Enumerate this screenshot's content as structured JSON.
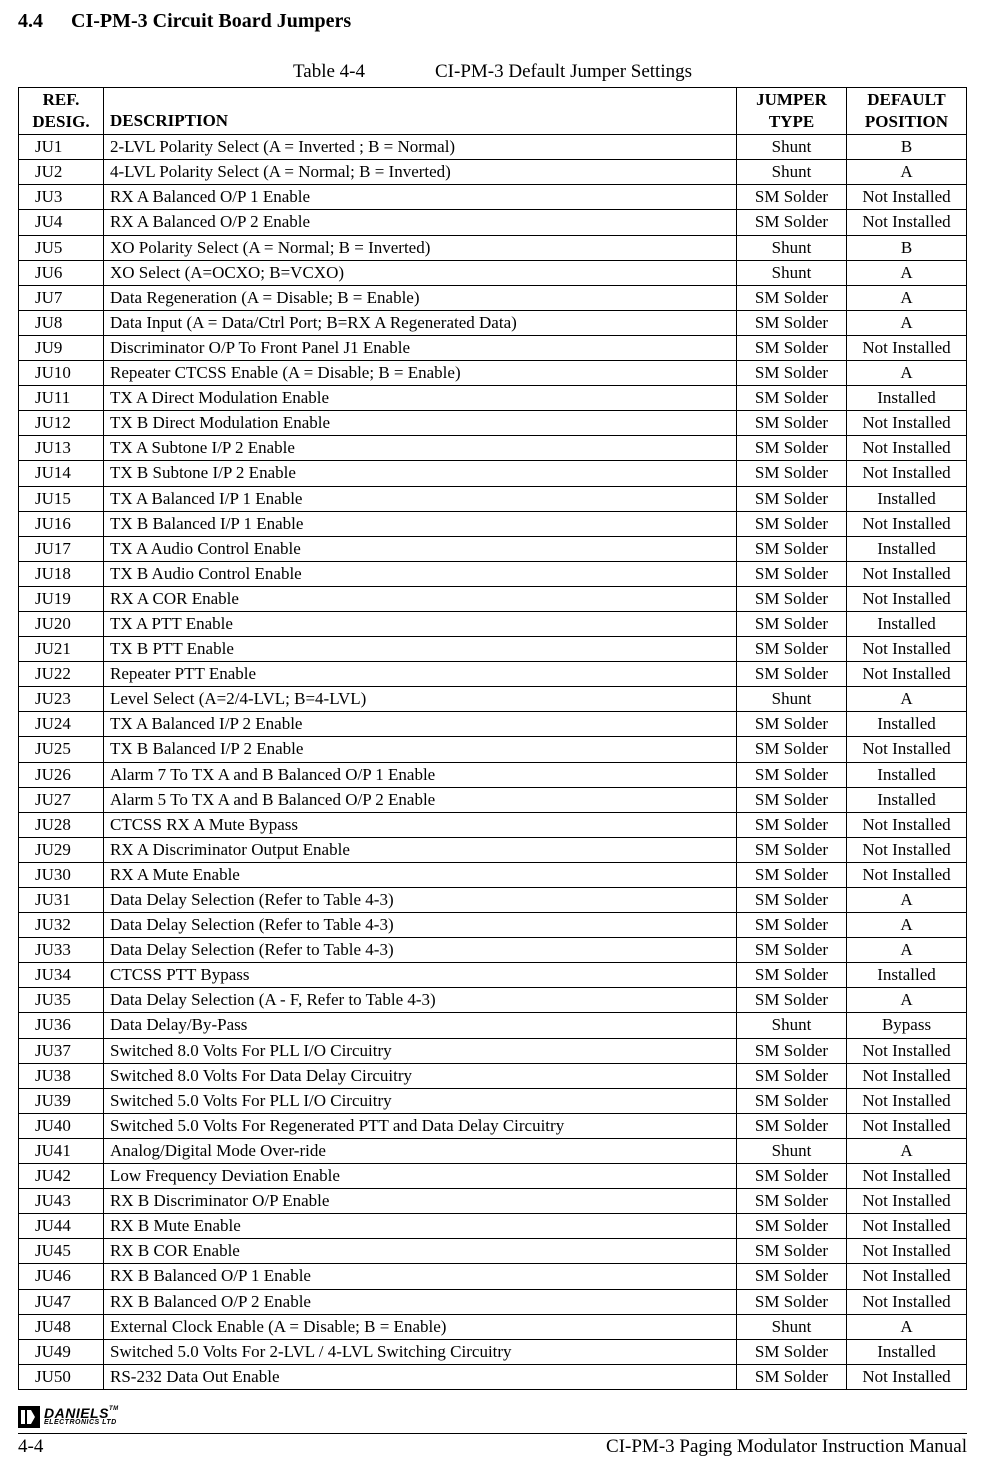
{
  "section": {
    "number": "4.4",
    "title": "CI-PM-3 Circuit Board Jumpers"
  },
  "table": {
    "number": "Table 4-4",
    "title": "CI-PM-3 Default Jumper Settings",
    "headers": {
      "ref1": "REF.",
      "ref2": "DESIG.",
      "desc": "DESCRIPTION",
      "type1": "JUMPER",
      "type2": "TYPE",
      "pos1": "DEFAULT",
      "pos2": "POSITION"
    },
    "rows": [
      {
        "ref": "JU1",
        "desc": "2-LVL Polarity Select (A = Inverted ; B = Normal)",
        "type": "Shunt",
        "pos": "B"
      },
      {
        "ref": "JU2",
        "desc": "4-LVL Polarity Select (A = Normal; B = Inverted)",
        "type": "Shunt",
        "pos": "A"
      },
      {
        "ref": "JU3",
        "desc": "RX A Balanced O/P 1 Enable",
        "type": "SM Solder",
        "pos": "Not Installed"
      },
      {
        "ref": "JU4",
        "desc": "RX A Balanced O/P 2 Enable",
        "type": "SM Solder",
        "pos": "Not Installed"
      },
      {
        "ref": "JU5",
        "desc": "XO Polarity Select (A = Normal; B = Inverted)",
        "type": "Shunt",
        "pos": "B"
      },
      {
        "ref": "JU6",
        "desc": "XO Select (A=OCXO; B=VCXO)",
        "type": "Shunt",
        "pos": "A"
      },
      {
        "ref": "JU7",
        "desc": "Data Regeneration (A = Disable; B = Enable)",
        "type": "SM Solder",
        "pos": "A"
      },
      {
        "ref": "JU8",
        "desc": "Data Input (A = Data/Ctrl Port; B=RX A Regenerated Data)",
        "type": "SM Solder",
        "pos": "A"
      },
      {
        "ref": "JU9",
        "desc": "Discriminator O/P To Front Panel J1 Enable",
        "type": "SM Solder",
        "pos": "Not Installed"
      },
      {
        "ref": "JU10",
        "desc": "Repeater CTCSS Enable (A = Disable; B = Enable)",
        "type": "SM Solder",
        "pos": "A"
      },
      {
        "ref": "JU11",
        "desc": "TX A Direct Modulation Enable",
        "type": "SM Solder",
        "pos": "Installed"
      },
      {
        "ref": "JU12",
        "desc": "TX B Direct Modulation Enable",
        "type": "SM Solder",
        "pos": "Not Installed"
      },
      {
        "ref": "JU13",
        "desc": "TX A Subtone I/P 2 Enable",
        "type": "SM Solder",
        "pos": "Not Installed"
      },
      {
        "ref": "JU14",
        "desc": "TX B Subtone I/P 2 Enable",
        "type": "SM Solder",
        "pos": "Not Installed"
      },
      {
        "ref": "JU15",
        "desc": "TX A Balanced I/P 1 Enable",
        "type": "SM Solder",
        "pos": "Installed"
      },
      {
        "ref": "JU16",
        "desc": "TX B Balanced I/P 1 Enable",
        "type": "SM Solder",
        "pos": "Not Installed"
      },
      {
        "ref": "JU17",
        "desc": "TX A Audio Control Enable",
        "type": "SM Solder",
        "pos": "Installed"
      },
      {
        "ref": "JU18",
        "desc": "TX B Audio Control Enable",
        "type": "SM Solder",
        "pos": "Not Installed"
      },
      {
        "ref": "JU19",
        "desc": "RX A COR Enable",
        "type": "SM Solder",
        "pos": "Not Installed"
      },
      {
        "ref": "JU20",
        "desc": "TX A PTT Enable",
        "type": "SM Solder",
        "pos": "Installed"
      },
      {
        "ref": "JU21",
        "desc": "TX B PTT Enable",
        "type": "SM Solder",
        "pos": "Not Installed"
      },
      {
        "ref": "JU22",
        "desc": "Repeater PTT Enable",
        "type": "SM Solder",
        "pos": "Not Installed"
      },
      {
        "ref": "JU23",
        "desc": "Level Select (A=2/4-LVL; B=4-LVL)",
        "type": "Shunt",
        "pos": "A"
      },
      {
        "ref": "JU24",
        "desc": "TX A Balanced I/P 2 Enable",
        "type": "SM Solder",
        "pos": "Installed"
      },
      {
        "ref": "JU25",
        "desc": "TX B Balanced I/P 2 Enable",
        "type": "SM Solder",
        "pos": "Not Installed"
      },
      {
        "ref": "JU26",
        "desc": "Alarm 7 To TX A and B Balanced O/P 1 Enable",
        "type": "SM Solder",
        "pos": "Installed"
      },
      {
        "ref": "JU27",
        "desc": "Alarm 5 To TX A and B Balanced O/P 2 Enable",
        "type": "SM Solder",
        "pos": "Installed"
      },
      {
        "ref": "JU28",
        "desc": "CTCSS RX A Mute Bypass",
        "type": "SM Solder",
        "pos": "Not Installed"
      },
      {
        "ref": "JU29",
        "desc": "RX A Discriminator Output Enable",
        "type": "SM Solder",
        "pos": "Not Installed"
      },
      {
        "ref": "JU30",
        "desc": "RX A Mute Enable",
        "type": "SM Solder",
        "pos": "Not Installed"
      },
      {
        "ref": "JU31",
        "desc": "Data Delay Selection (Refer to Table 4-3)",
        "type": "SM Solder",
        "pos": "A"
      },
      {
        "ref": "JU32",
        "desc": "Data Delay Selection (Refer to Table 4-3)",
        "type": "SM Solder",
        "pos": "A"
      },
      {
        "ref": "JU33",
        "desc": "Data Delay Selection (Refer to Table 4-3)",
        "type": "SM Solder",
        "pos": "A"
      },
      {
        "ref": "JU34",
        "desc": "CTCSS PTT Bypass",
        "type": "SM Solder",
        "pos": "Installed"
      },
      {
        "ref": "JU35",
        "desc": "Data Delay Selection (A - F, Refer to Table 4-3)",
        "type": "SM Solder",
        "pos": "A"
      },
      {
        "ref": "JU36",
        "desc": "Data Delay/By-Pass",
        "type": "Shunt",
        "pos": "Bypass"
      },
      {
        "ref": "JU37",
        "desc": "Switched 8.0 Volts For PLL I/O Circuitry",
        "type": "SM Solder",
        "pos": "Not Installed"
      },
      {
        "ref": "JU38",
        "desc": "Switched 8.0 Volts For Data Delay Circuitry",
        "type": "SM Solder",
        "pos": "Not Installed"
      },
      {
        "ref": "JU39",
        "desc": "Switched 5.0 Volts For PLL I/O Circuitry",
        "type": "SM Solder",
        "pos": "Not Installed"
      },
      {
        "ref": "JU40",
        "desc": "Switched 5.0 Volts For Regenerated PTT and Data Delay Circuitry",
        "type": "SM Solder",
        "pos": "Not Installed"
      },
      {
        "ref": "JU41",
        "desc": "Analog/Digital Mode Over-ride",
        "type": "Shunt",
        "pos": "A"
      },
      {
        "ref": "JU42",
        "desc": "Low Frequency Deviation Enable",
        "type": "SM Solder",
        "pos": "Not Installed"
      },
      {
        "ref": "JU43",
        "desc": "RX B Discriminator O/P Enable",
        "type": "SM Solder",
        "pos": "Not Installed"
      },
      {
        "ref": "JU44",
        "desc": "RX B Mute Enable",
        "type": "SM Solder",
        "pos": "Not Installed"
      },
      {
        "ref": "JU45",
        "desc": "RX B COR Enable",
        "type": "SM Solder",
        "pos": "Not Installed"
      },
      {
        "ref": "JU46",
        "desc": "RX B Balanced O/P 1 Enable",
        "type": "SM Solder",
        "pos": "Not Installed"
      },
      {
        "ref": "JU47",
        "desc": "RX B Balanced O/P 2 Enable",
        "type": "SM Solder",
        "pos": "Not Installed"
      },
      {
        "ref": "JU48",
        "desc": "External Clock Enable (A = Disable; B = Enable)",
        "type": "Shunt",
        "pos": "A"
      },
      {
        "ref": "JU49",
        "desc": "Switched 5.0 Volts For 2-LVL / 4-LVL Switching Circuitry",
        "type": "SM Solder",
        "pos": "Installed"
      },
      {
        "ref": "JU50",
        "desc": "RS-232 Data Out Enable",
        "type": "SM Solder",
        "pos": "Not Installed"
      }
    ]
  },
  "footer": {
    "logo_name": "DANIELS",
    "logo_sub": "ELECTRONICS LTD",
    "tm": "TM",
    "page": "4-4",
    "doc_title": "CI-PM-3 Paging Modulator Instruction Manual"
  }
}
